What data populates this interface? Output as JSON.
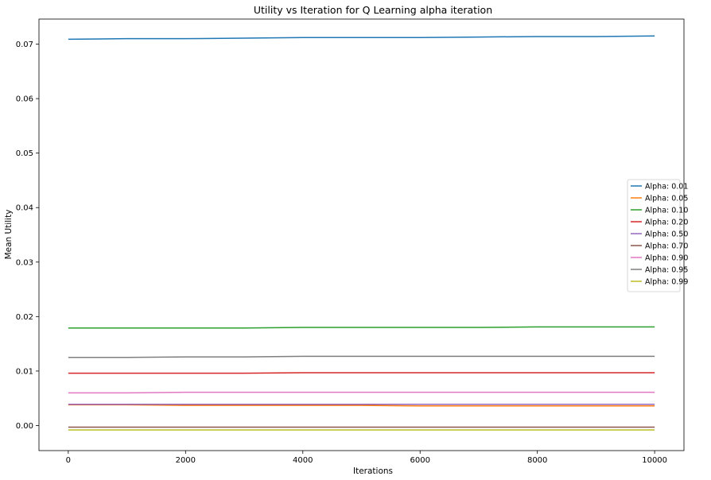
{
  "chart_data": {
    "type": "line",
    "title": "Utility vs Iteration for Q Learning alpha iteration",
    "xlabel": "Iterations",
    "ylabel": "Mean Utility",
    "xlim": [
      -500,
      10500
    ],
    "ylim": [
      -0.0046,
      0.0746
    ],
    "xticks": [
      0,
      2000,
      4000,
      6000,
      8000,
      10000
    ],
    "xtick_labels": [
      "0",
      "2000",
      "4000",
      "6000",
      "8000",
      "10000"
    ],
    "yticks": [
      0.0,
      0.01,
      0.02,
      0.03,
      0.04,
      0.05,
      0.06,
      0.07
    ],
    "ytick_labels": [
      "0.00",
      "0.01",
      "0.02",
      "0.03",
      "0.04",
      "0.05",
      "0.06",
      "0.07"
    ],
    "grid": false,
    "legend_position": "center-right",
    "x": [
      0,
      1000,
      2000,
      3000,
      4000,
      5000,
      6000,
      7000,
      8000,
      9000,
      10000
    ],
    "series": [
      {
        "name": "Alpha: 0.01",
        "color": "#1f77b4",
        "values": [
          0.0709,
          0.071,
          0.071,
          0.0711,
          0.0712,
          0.0712,
          0.0712,
          0.0713,
          0.0714,
          0.0714,
          0.0715
        ]
      },
      {
        "name": "Alpha: 0.05",
        "color": "#ff7f0e",
        "values": [
          0.0038,
          0.0038,
          0.0037,
          0.0037,
          0.0037,
          0.0037,
          0.0036,
          0.0036,
          0.0036,
          0.0036,
          0.0036
        ]
      },
      {
        "name": "Alpha: 0.10",
        "color": "#2ca02c",
        "values": [
          0.0179,
          0.0179,
          0.0179,
          0.0179,
          0.018,
          0.018,
          0.018,
          0.018,
          0.0181,
          0.0181,
          0.0181
        ]
      },
      {
        "name": "Alpha: 0.20",
        "color": "#d62728",
        "values": [
          0.0096,
          0.0096,
          0.0096,
          0.0096,
          0.0097,
          0.0097,
          0.0097,
          0.0097,
          0.0097,
          0.0097,
          0.0097
        ]
      },
      {
        "name": "Alpha: 0.50",
        "color": "#9467bd",
        "values": [
          0.0039,
          0.0039,
          0.0039,
          0.0039,
          0.0039,
          0.0039,
          0.0039,
          0.0039,
          0.0039,
          0.0039,
          0.0039
        ]
      },
      {
        "name": "Alpha: 0.70",
        "color": "#8c564b",
        "values": [
          -0.0003,
          -0.0003,
          -0.0003,
          -0.0003,
          -0.0003,
          -0.0003,
          -0.0003,
          -0.0003,
          -0.0003,
          -0.0003,
          -0.0003
        ]
      },
      {
        "name": "Alpha: 0.90",
        "color": "#e377c2",
        "values": [
          0.006,
          0.006,
          0.0061,
          0.0061,
          0.0061,
          0.0061,
          0.0061,
          0.0061,
          0.0061,
          0.0061,
          0.0061
        ]
      },
      {
        "name": "Alpha: 0.95",
        "color": "#7f7f7f",
        "values": [
          0.0125,
          0.0125,
          0.0126,
          0.0126,
          0.0127,
          0.0127,
          0.0127,
          0.0127,
          0.0127,
          0.0127,
          0.0127
        ]
      },
      {
        "name": "Alpha: 0.99",
        "color": "#bcbd22",
        "values": [
          -0.0008,
          -0.0008,
          -0.0008,
          -0.0008,
          -0.0008,
          -0.0008,
          -0.0008,
          -0.0008,
          -0.0008,
          -0.0008,
          -0.0008
        ]
      }
    ]
  }
}
